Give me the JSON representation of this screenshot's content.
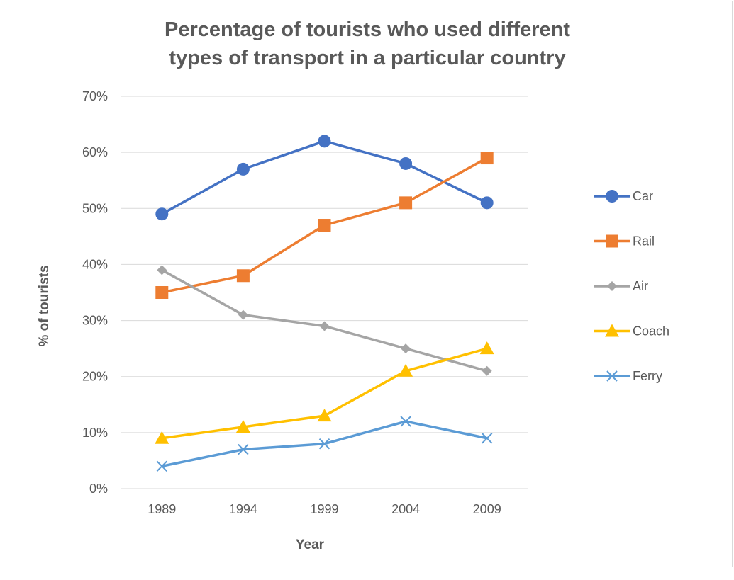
{
  "chart_data": {
    "type": "line",
    "title": [
      "Percentage of tourists who used different",
      "types of transport in a particular country"
    ],
    "xlabel": "Year",
    "ylabel": "% of tourists",
    "categories": [
      "1989",
      "1994",
      "1999",
      "2004",
      "2009"
    ],
    "y_ticks": [
      "0%",
      "10%",
      "20%",
      "30%",
      "40%",
      "50%",
      "60%",
      "70%"
    ],
    "ylim": [
      0,
      70
    ],
    "grid": "horizontal",
    "legend_position": "right",
    "series": [
      {
        "name": "Car",
        "color": "#4472c4",
        "marker": "circle",
        "values": [
          49,
          57,
          62,
          58,
          51
        ]
      },
      {
        "name": "Rail",
        "color": "#ed7d31",
        "marker": "square",
        "values": [
          35,
          38,
          47,
          51,
          59
        ]
      },
      {
        "name": "Air",
        "color": "#a5a5a5",
        "marker": "diamond",
        "values": [
          39,
          31,
          29,
          25,
          21
        ]
      },
      {
        "name": "Coach",
        "color": "#ffc000",
        "marker": "triangle",
        "values": [
          9,
          11,
          13,
          21,
          25
        ]
      },
      {
        "name": "Ferry",
        "color": "#5b9bd5",
        "marker": "x",
        "values": [
          4,
          7,
          8,
          12,
          9
        ]
      }
    ]
  }
}
